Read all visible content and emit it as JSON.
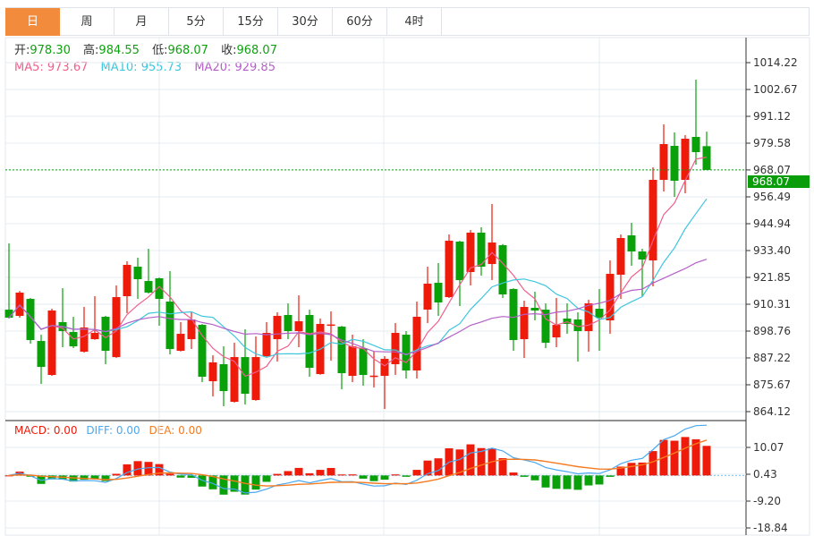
{
  "tabs": [
    "日",
    "周",
    "月",
    "5分",
    "15分",
    "30分",
    "60分",
    "4时"
  ],
  "active_tab": 0,
  "ohlc_info": {
    "open_label": "开:",
    "open": "978.30",
    "high_label": "高:",
    "high": "984.55",
    "low_label": "低:",
    "low": "968.07",
    "close_label": "收:",
    "close": "968.07"
  },
  "ma_info": {
    "ma5": "MA5: 973.67",
    "ma10": "MA10: 955.73",
    "ma20": "MA20: 929.85"
  },
  "macd_info": {
    "macd": "MACD: 0.00",
    "diff": "DIFF: 0.00",
    "dea": "DEA: 0.00"
  },
  "current_price": "968.07",
  "colors": {
    "up": "#ee1a0a",
    "down": "#0aa00a",
    "ma5": "#ef5f8c",
    "ma10": "#3ec6dc",
    "ma20": "#b45fc8",
    "diff": "#4aa8f0",
    "dea": "#f57a20",
    "tab_active": "#f28c3c"
  },
  "chart_data": {
    "type": "candlestick",
    "price_ticks": [
      "1014.22",
      "1002.67",
      "991.12",
      "979.58",
      "968.07",
      "956.49",
      "944.94",
      "933.40",
      "921.85",
      "910.31",
      "898.76",
      "887.22",
      "875.67",
      "864.12"
    ],
    "ylim": [
      864.12,
      1014.22
    ],
    "macd_ticks": [
      "10.07",
      "0.43",
      "-9.20",
      "-18.84"
    ],
    "macd_ylim": [
      -18.84,
      10.07
    ],
    "candles": [
      [
        907.98,
        936.47,
        904.14,
        904.52
      ],
      [
        905.29,
        916.0,
        904.52,
        915.3
      ],
      [
        912.6,
        912.99,
        893.36,
        894.9
      ],
      [
        894.51,
        897.21,
        876.04,
        883.35
      ],
      [
        879.89,
        908.37,
        879.5,
        907.6
      ],
      [
        902.6,
        917.22,
        891.82,
        898.75
      ],
      [
        898.36,
        904.91,
        891.43,
        892.2
      ],
      [
        889.89,
        909.14,
        889.5,
        900.29
      ],
      [
        895.28,
        913.76,
        895.0,
        897.98
      ],
      [
        904.91,
        905.3,
        884.51,
        890.28
      ],
      [
        887.58,
        918.38,
        887.2,
        913.37
      ],
      [
        913.76,
        928.77,
        906.44,
        927.23
      ],
      [
        926.46,
        930.31,
        912.6,
        921.07
      ],
      [
        920.3,
        934.16,
        914.9,
        915.3
      ],
      [
        921.46,
        921.8,
        901.06,
        912.6
      ],
      [
        911.45,
        924.54,
        888.74,
        891.05
      ],
      [
        890.28,
        902.6,
        890.0,
        897.59
      ],
      [
        895.28,
        906.83,
        891.05,
        903.75
      ],
      [
        901.44,
        901.8,
        876.81,
        879.12
      ],
      [
        877.19,
        888.35,
        870.65,
        885.28
      ],
      [
        884.51,
        892.2,
        866.42,
        872.96
      ],
      [
        868.34,
        893.74,
        868.0,
        887.58
      ],
      [
        887.58,
        899.52,
        867.19,
        871.8
      ],
      [
        869.11,
        896.44,
        868.8,
        887.58
      ],
      [
        887.97,
        902.6,
        887.6,
        897.98
      ],
      [
        895.28,
        906.83,
        885.66,
        905.29
      ],
      [
        905.68,
        910.68,
        895.28,
        898.75
      ],
      [
        898.75,
        914.14,
        891.82,
        902.98
      ],
      [
        905.68,
        907.98,
        879.12,
        882.97
      ],
      [
        880.27,
        904.14,
        880.0,
        901.83
      ],
      [
        901.44,
        907.21,
        886.04,
        901.6
      ],
      [
        900.67,
        901.0,
        873.73,
        880.66
      ],
      [
        879.5,
        897.21,
        876.81,
        892.2
      ],
      [
        891.43,
        895.28,
        875.27,
        879.89
      ],
      [
        879.4,
        889.89,
        874.5,
        879.6
      ],
      [
        879.5,
        887.97,
        865.26,
        886.81
      ],
      [
        884.51,
        902.21,
        879.89,
        897.98
      ],
      [
        897.21,
        898.75,
        878.35,
        881.81
      ],
      [
        881.81,
        911.45,
        878.35,
        904.91
      ],
      [
        908.0,
        926.46,
        902.21,
        919.15
      ],
      [
        919.53,
        928.0,
        905.29,
        911.06
      ],
      [
        913.37,
        940.32,
        913.0,
        937.62
      ],
      [
        937.24,
        937.6,
        909.52,
        920.69
      ],
      [
        924.15,
        942.24,
        918.38,
        941.09
      ],
      [
        941.09,
        943.4,
        922.61,
        926.46
      ],
      [
        927.61,
        953.4,
        920.69,
        936.85
      ],
      [
        935.7,
        936.2,
        912.99,
        914.53
      ],
      [
        916.84,
        917.2,
        890.28,
        894.9
      ],
      [
        895.28,
        911.83,
        887.2,
        909.14
      ],
      [
        908.76,
        915.68,
        903.37,
        907.6
      ],
      [
        907.98,
        910.68,
        891.43,
        893.74
      ],
      [
        896.05,
        912.99,
        891.82,
        901.44
      ],
      [
        904.14,
        910.68,
        897.59,
        901.83
      ],
      [
        903.75,
        906.83,
        885.66,
        898.75
      ],
      [
        898.75,
        912.22,
        889.89,
        910.68
      ],
      [
        908.37,
        916.84,
        890.28,
        904.52
      ],
      [
        903.37,
        929.15,
        897.59,
        923.38
      ],
      [
        923.0,
        940.32,
        912.6,
        938.78
      ],
      [
        939.93,
        945.32,
        926.84,
        933.0
      ],
      [
        933.0,
        934.16,
        913.76,
        929.54
      ],
      [
        929.15,
        969.18,
        917.99,
        963.8
      ],
      [
        963.8,
        987.66,
        958.79,
        979.19
      ],
      [
        978.42,
        984.19,
        956.48,
        963.41
      ],
      [
        963.8,
        983.04,
        958.02,
        981.5
      ],
      [
        982.27,
        1006.9,
        970.34,
        975.73
      ],
      [
        978.3,
        984.55,
        968.07,
        968.07
      ]
    ]
  }
}
